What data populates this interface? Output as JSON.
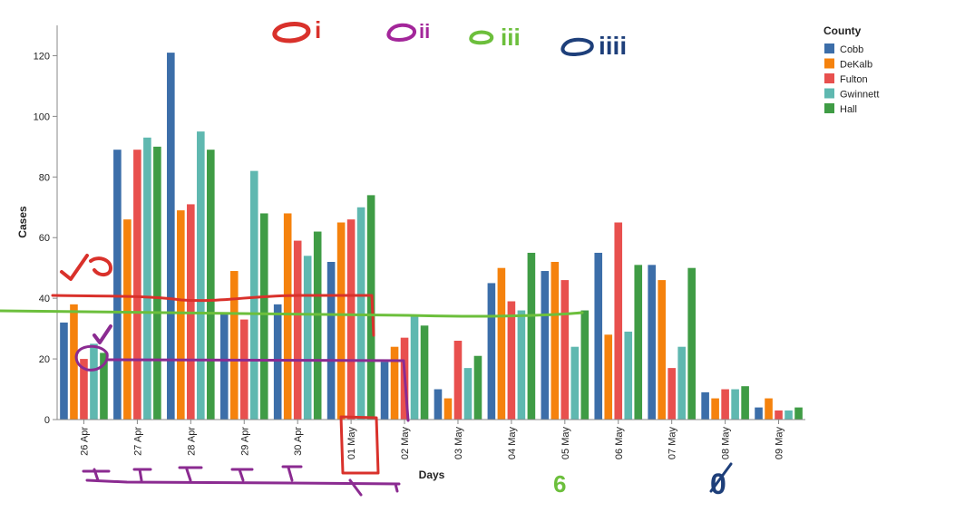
{
  "chart_data": {
    "type": "bar",
    "xlabel": "Days",
    "ylabel": "Cases",
    "ylim": [
      0,
      130
    ],
    "yticks": [
      0,
      20,
      40,
      60,
      80,
      100,
      120
    ],
    "grid": false,
    "legend_title": "County",
    "legend_position": "right",
    "categories": [
      "26 Apr",
      "27 Apr",
      "28 Apr",
      "29 Apr",
      "30 Apr",
      "01 May",
      "02 May",
      "03 May",
      "04 May",
      "05 May",
      "06 May",
      "07 May",
      "08 May",
      "09 May"
    ],
    "series": [
      {
        "name": "Cobb",
        "color": "#3c6ea9",
        "values": [
          32,
          89,
          121,
          35,
          38,
          52,
          19,
          10,
          45,
          49,
          55,
          51,
          9,
          4
        ]
      },
      {
        "name": "DeKalb",
        "color": "#f5820d",
        "values": [
          38,
          66,
          69,
          49,
          68,
          65,
          24,
          7,
          50,
          52,
          28,
          46,
          7,
          7
        ]
      },
      {
        "name": "Fulton",
        "color": "#e8504e",
        "values": [
          20,
          89,
          71,
          33,
          59,
          66,
          27,
          26,
          39,
          46,
          65,
          17,
          10,
          3
        ]
      },
      {
        "name": "Gwinnett",
        "color": "#5fb8b0",
        "values": [
          25,
          93,
          95,
          82,
          54,
          70,
          34,
          17,
          36,
          24,
          29,
          24,
          10,
          3
        ]
      },
      {
        "name": "Hall",
        "color": "#3f9c45",
        "values": [
          22,
          90,
          89,
          68,
          62,
          74,
          31,
          21,
          55,
          36,
          51,
          50,
          11,
          4
        ]
      }
    ]
  },
  "annotations": {
    "top_marks": [
      {
        "text": "i",
        "color": "#d9312b"
      },
      {
        "text": "ii",
        "color": "#a3269a"
      },
      {
        "text": "iii",
        "color": "#6cbf3c"
      },
      {
        "text": "iiii",
        "color": "#1e3f7a"
      }
    ],
    "number_marks": [
      {
        "text": "6",
        "color": "#6cbf3c"
      },
      {
        "text": "0",
        "color": "#1e3f7a"
      }
    ],
    "ink_colors": {
      "red": "#d9312b",
      "purple": "#8b2b91",
      "green": "#6cbf3c",
      "navy": "#1e3f7a"
    }
  }
}
